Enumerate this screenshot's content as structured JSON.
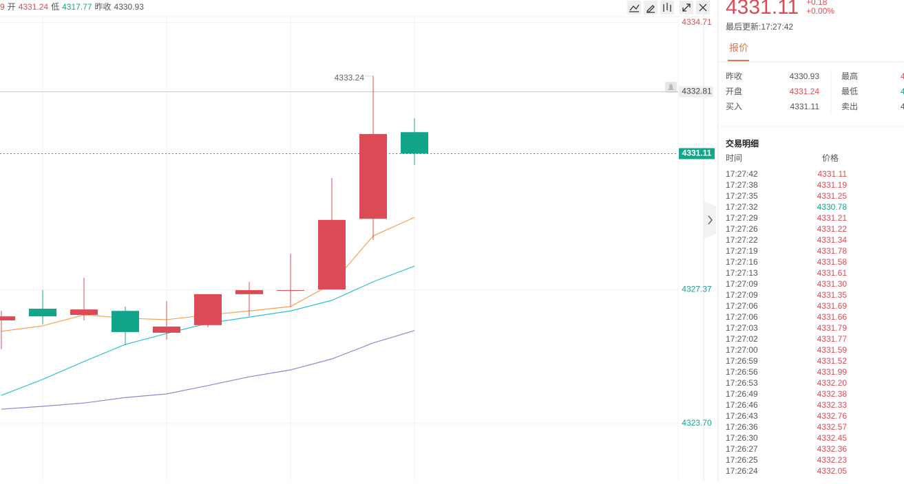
{
  "info": {
    "cut": "9",
    "open_label": "开",
    "open": "4331.24",
    "low_label": "低",
    "low": "4317.77",
    "prev_label": "昨收",
    "prev_close": "4330.93"
  },
  "chart_data": {
    "type": "candlestick",
    "categories": [
      null,
      null,
      null,
      null,
      null,
      null,
      null,
      null,
      null,
      null,
      null
    ],
    "open": [
      4326.53,
      4326.85,
      4326.68,
      4326.79,
      4326.19,
      4326.4,
      4327.25,
      4327.36,
      4327.38,
      4329.32,
      4331.7
    ],
    "high": [
      4326.79,
      4327.36,
      4327.7,
      4326.91,
      4327.06,
      4327.25,
      4327.59,
      4328.36,
      4330.44,
      4333.24,
      4332.08
    ],
    "low": [
      4325.74,
      4326.42,
      4326.53,
      4325.85,
      4326.0,
      4326.34,
      4326.64,
      4326.89,
      4327.38,
      4328.74,
      4330.8
    ],
    "close": [
      4326.64,
      4326.64,
      4326.83,
      4326.21,
      4326.36,
      4327.25,
      4327.36,
      4327.36,
      4329.29,
      4331.65,
      4331.11
    ],
    "up_color": "#dc4b55",
    "down_color": "#13a58a",
    "series": [
      {
        "color": "#f5a050",
        "values": [
          4326.23,
          4326.38,
          4326.68,
          4326.59,
          4326.55,
          4326.68,
          4326.79,
          4326.91,
          4327.53,
          4328.85,
          4329.36
        ]
      },
      {
        "color": "#2ec0d6",
        "values": [
          4324.47,
          4324.91,
          4325.4,
          4325.87,
          4326.17,
          4326.45,
          4326.62,
          4326.79,
          4327.08,
          4327.59,
          4328.02
        ]
      },
      {
        "color": "#9a7fd1",
        "values": [
          4324.09,
          4324.17,
          4324.26,
          4324.41,
          4324.51,
          4324.74,
          4324.98,
          4325.17,
          4325.47,
          4325.91,
          4326.25
        ]
      }
    ],
    "ylim": [
      4322.13,
      4335.33
    ],
    "yticks": [
      4334.71,
      4327.37,
      {
        "value": 4323.7,
        "label": "4323.70"
      }
    ],
    "price_lines": [
      4332.81
    ],
    "grid": true
  },
  "quote": {
    "price": "4331.11",
    "change": "+0.18",
    "change_pct": "+0.00%",
    "updated": "最后更新:17:27:42",
    "tab": "报价",
    "grid": [
      [
        "昨收",
        "4330.93",
        "最高",
        "4"
      ],
      [
        "开盘",
        "4331.24",
        "最低",
        "4"
      ],
      [
        "买入",
        "4331.11",
        "卖出",
        "4"
      ]
    ]
  },
  "trades": {
    "title": "交易明细",
    "headers": [
      "时间",
      "价格"
    ],
    "rows": [
      [
        "17:27:42",
        "4331.11"
      ],
      [
        "17:27:38",
        "4331.19"
      ],
      [
        "17:27:35",
        "4331.25"
      ],
      [
        "17:27:32",
        "4330.78"
      ],
      [
        "17:27:29",
        "4331.21"
      ],
      [
        "17:27:26",
        "4331.22"
      ],
      [
        "17:27:22",
        "4331.34"
      ],
      [
        "17:27:19",
        "4331.78"
      ],
      [
        "17:27:16",
        "4331.58"
      ],
      [
        "17:27:13",
        "4331.61"
      ],
      [
        "17:27:09",
        "4331.30"
      ],
      [
        "17:27:09",
        "4331.35"
      ],
      [
        "17:27:06",
        "4331.69"
      ],
      [
        "17:27:06",
        "4331.66"
      ],
      [
        "17:27:03",
        "4331.79"
      ],
      [
        "17:27:02",
        "4331.77"
      ],
      [
        "17:27:00",
        "4331.59"
      ],
      [
        "17:26:59",
        "4331.52"
      ],
      [
        "17:26:56",
        "4331.99"
      ],
      [
        "17:26:53",
        "4332.20"
      ],
      [
        "17:26:49",
        "4332.38"
      ],
      [
        "17:26:46",
        "4332.33"
      ],
      [
        "17:26:43",
        "4332.76"
      ],
      [
        "17:26:36",
        "4332.57"
      ],
      [
        "17:26:30",
        "4332.45"
      ],
      [
        "17:26:27",
        "4332.36"
      ],
      [
        "17:26:25",
        "4332.23"
      ],
      [
        "17:26:24",
        "4332.05"
      ]
    ]
  }
}
